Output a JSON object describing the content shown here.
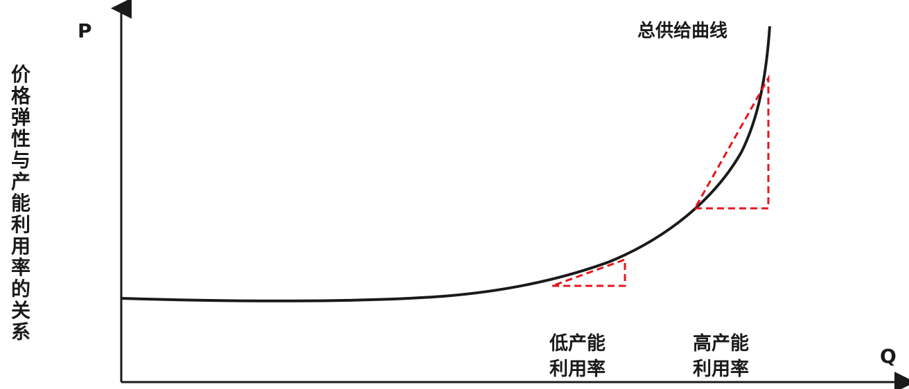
{
  "side_title": "价格弹性与产能利用率的关系",
  "axes": {
    "y_label": "P",
    "x_label": "Q"
  },
  "curve_label": "总供给曲线",
  "regions": {
    "low": {
      "line1": "低产能",
      "line2": "利用率"
    },
    "high": {
      "line1": "高产能",
      "line2": "利用率"
    }
  },
  "colors": {
    "curve": "#1a1a1a",
    "axis": "#1a1a1a",
    "triangle": "#e8141c"
  }
}
